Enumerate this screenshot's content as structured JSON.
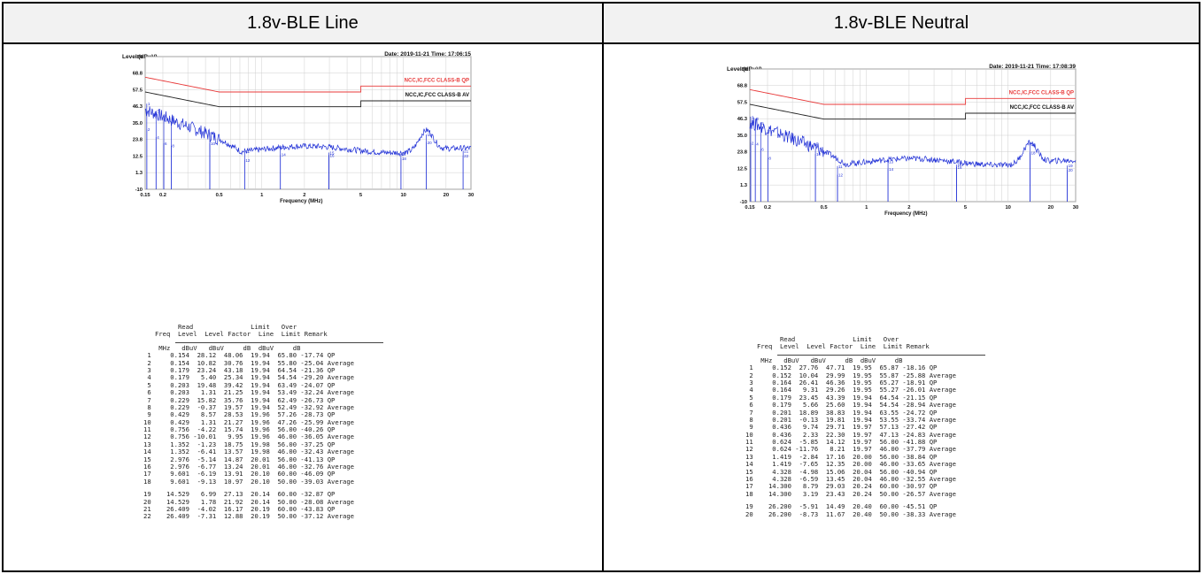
{
  "columns": [
    {
      "header": "1.8v-BLE Line",
      "chart": {
        "level_label": "Level (dBuV)",
        "date_time": "Date: 2019-11-21  Time: 17:06:15",
        "y_ticks": [
          "80",
          "68.8",
          "57.5",
          "46.3",
          "35.0",
          "23.8",
          "12.5",
          "1.3",
          "-10"
        ],
        "x_ticks": [
          "0.15",
          "0.2",
          "0.5",
          "1",
          "2",
          "5",
          "10",
          "20",
          "30"
        ],
        "x_label": "Frequency (MHz)",
        "qp_label": "NCC,IC,FCC CLASS-B QP",
        "av_label": "NCC,IC,FCC CLASS-B AV",
        "qp_color": "#e83a3a",
        "av_color": "#222222",
        "trace_color": "#1f2fd6"
      },
      "table": {
        "head1": "         Read               Limit   Over",
        "head2": "   Freq  Level  Level Factor  Line  Limit Remark",
        "units": "    MHz   dBuV   dBuV     dB  dBuV     dB",
        "rows": [
          " 1     0.154  28.12  48.06  19.94  65.80 -17.74 QP",
          " 2     0.154  10.82  30.76  19.94  55.80 -25.04 Average",
          " 3     0.179  23.24  43.18  19.94  64.54 -21.36 QP",
          " 4     0.179   5.40  25.34  19.94  54.54 -29.20 Average",
          " 5     0.203  19.48  39.42  19.94  63.49 -24.07 QP",
          " 6     0.203   1.31  21.25  19.94  53.49 -32.24 Average",
          " 7     0.229  15.82  35.76  19.94  62.49 -26.73 QP",
          " 8     0.229  -0.37  19.57  19.94  52.49 -32.92 Average",
          " 9     0.429   8.57  28.53  19.96  57.26 -28.73 QP",
          "10     0.429   1.31  21.27  19.96  47.26 -25.99 Average",
          "11     0.756  -4.22  15.74  19.96  56.00 -40.26 QP",
          "12     0.756 -10.01   9.95  19.96  46.00 -36.05 Average",
          "13     1.352  -1.23  18.75  19.98  56.00 -37.25 QP",
          "14     1.352  -6.41  13.57  19.98  46.00 -32.43 Average",
          "15     2.976  -5.14  14.87  20.01  56.00 -41.13 QP",
          "16     2.976  -6.77  13.24  20.01  46.00 -32.76 Average",
          "17     9.601  -6.19  13.91  20.10  60.00 -46.09 QP",
          "18     9.601  -9.13  10.97  20.10  50.00 -39.03 Average"
        ],
        "rows_b": [
          "19    14.529   6.99  27.13  20.14  60.00 -32.87 QP",
          "20    14.529   1.78  21.92  20.14  50.00 -28.08 Average",
          "21    26.409  -4.02  16.17  20.19  60.00 -43.83 QP",
          "22    26.409  -7.31  12.88  20.19  50.00 -37.12 Average"
        ]
      }
    },
    {
      "header": "1.8v-BLE  Neutral",
      "chart": {
        "level_label": "Level (dBuV)",
        "date_time": "Date: 2019-11-21  Time: 17:08:39",
        "y_ticks": [
          "80",
          "68.8",
          "57.5",
          "46.3",
          "35.0",
          "23.8",
          "12.5",
          "1.3",
          "-10"
        ],
        "x_ticks": [
          "0.15",
          "0.2",
          "0.5",
          "1",
          "2",
          "5",
          "10",
          "20",
          "30"
        ],
        "x_label": "Frequency (MHz)",
        "qp_label": "NCC,IC,FCC CLASS-B QP",
        "av_label": "NCC,IC,FCC CLASS-B AV",
        "qp_color": "#e83a3a",
        "av_color": "#222222",
        "trace_color": "#1f2fd6"
      },
      "table": {
        "head1": "         Read               Limit   Over",
        "head2": "   Freq  Level  Level Factor  Line  Limit Remark",
        "units": "    MHz   dBuV   dBuV     dB  dBuV     dB",
        "rows": [
          " 1     0.152  27.76  47.71  19.95  65.87 -18.16 QP",
          " 2     0.152  10.04  29.99  19.95  55.87 -25.88 Average",
          " 3     0.164  26.41  46.36  19.95  65.27 -18.91 QP",
          " 4     0.164   9.31  29.26  19.95  55.27 -26.01 Average",
          " 5     0.179  23.45  43.39  19.94  64.54 -21.15 QP",
          " 6     0.179   5.66  25.60  19.94  54.54 -28.94 Average",
          " 7     0.201  18.89  38.83  19.94  63.55 -24.72 QP",
          " 8     0.201  -0.13  19.81  19.94  53.55 -33.74 Average",
          " 9     0.436   9.74  29.71  19.97  57.13 -27.42 QP",
          "10     0.436   2.33  22.30  19.97  47.13 -24.83 Average",
          "11     0.624  -5.85  14.12  19.97  56.00 -41.88 QP",
          "12     0.624 -11.76   8.21  19.97  46.00 -37.79 Average",
          "13     1.419  -2.84  17.16  20.00  56.00 -38.84 QP",
          "14     1.419  -7.65  12.35  20.00  46.00 -33.65 Average",
          "15     4.328  -4.98  15.06  20.04  56.00 -40.94 QP",
          "16     4.328  -6.59  13.45  20.04  46.00 -32.55 Average",
          "17    14.300   8.79  29.03  20.24  60.00 -30.97 QP",
          "18    14.300   3.19  23.43  20.24  50.00 -26.57 Average"
        ],
        "rows_b": [
          "19    26.200  -5.91  14.49  20.40  60.00 -45.51 QP",
          "20    26.200  -8.73  11.67  20.40  50.00 -38.33 Average"
        ]
      }
    }
  ]
}
